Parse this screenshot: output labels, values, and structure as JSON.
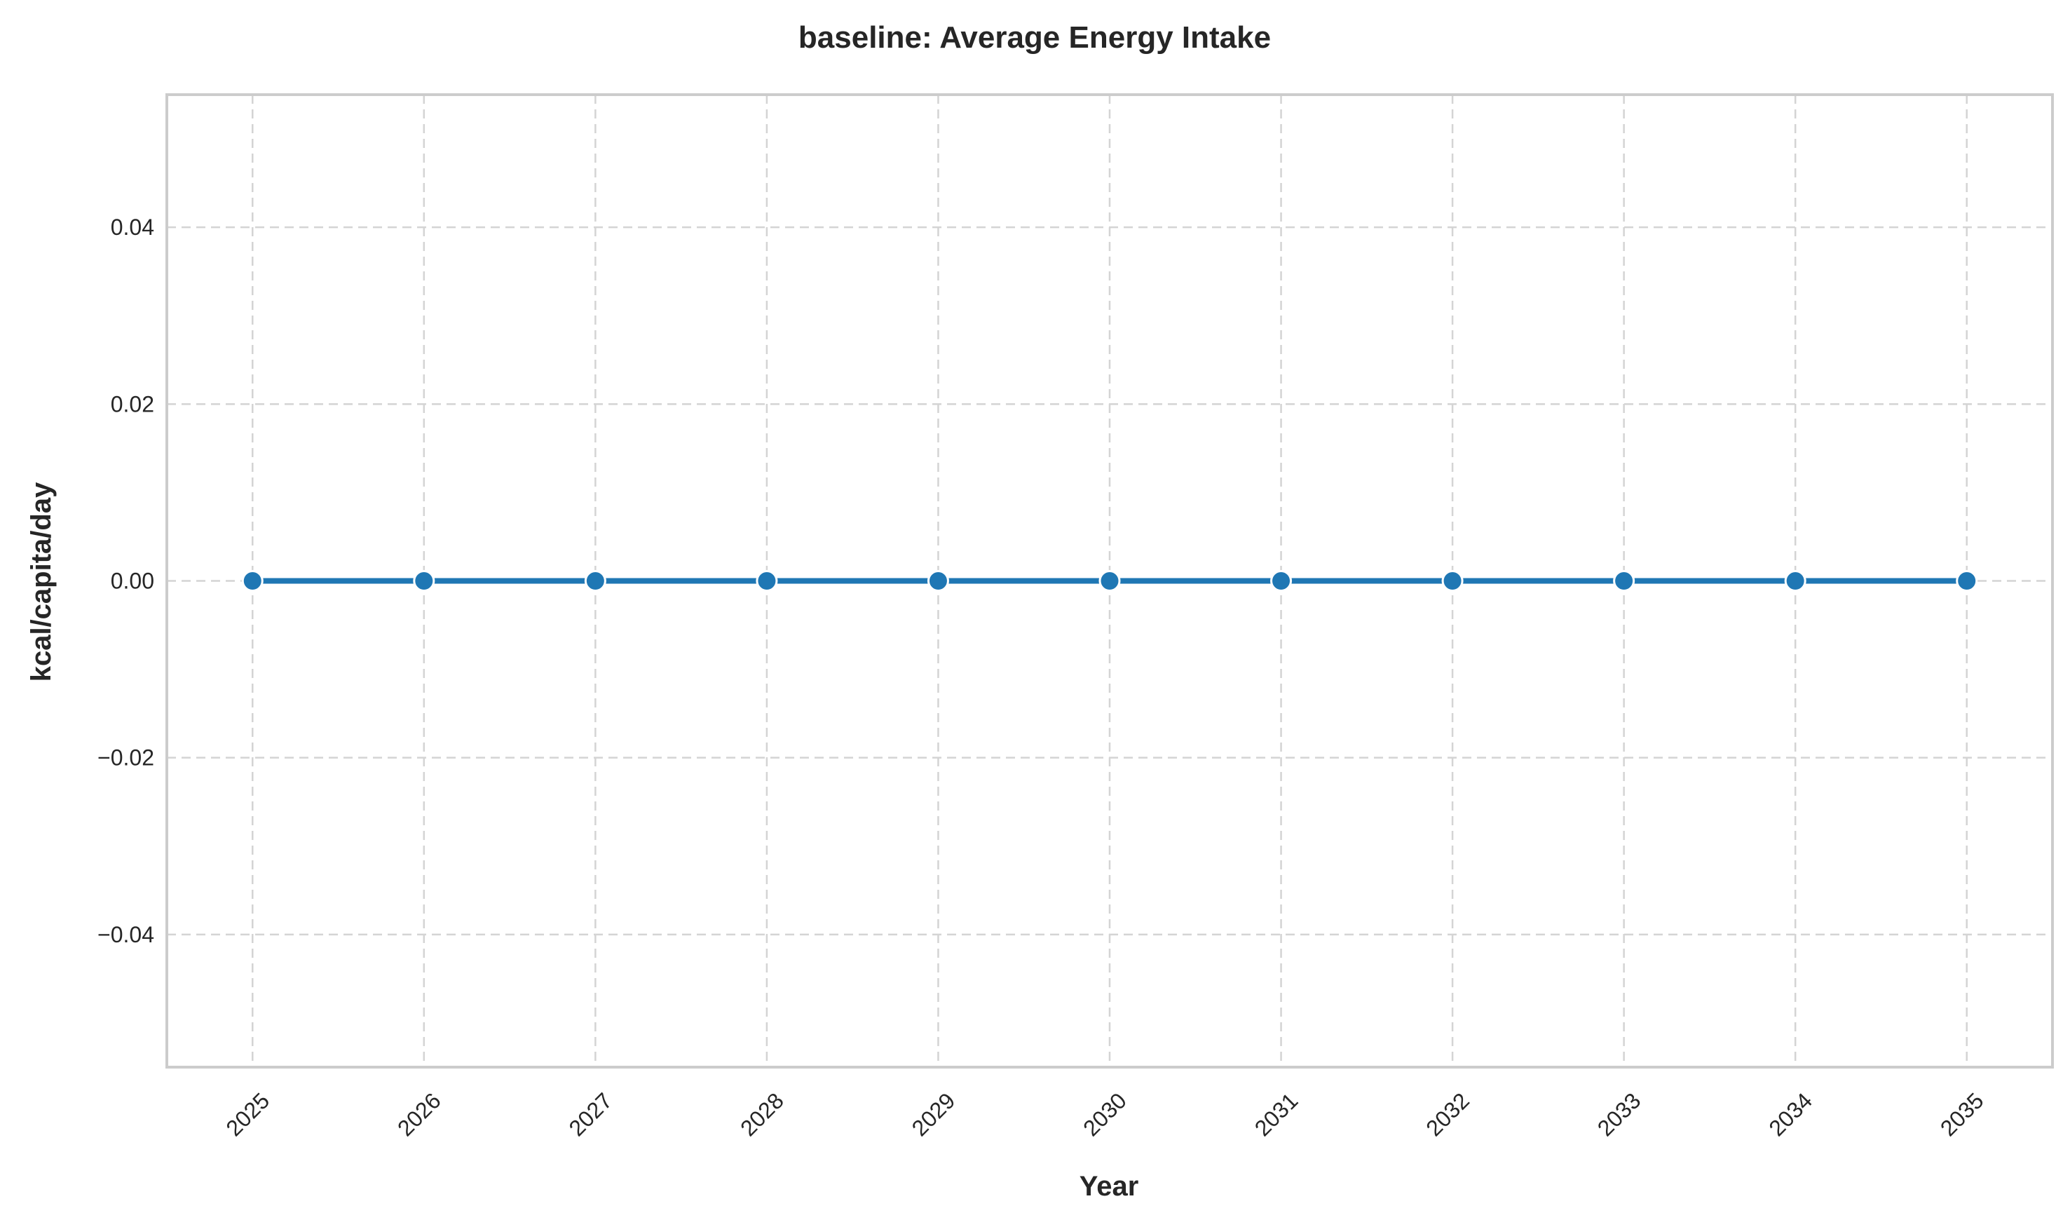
{
  "chart_data": {
    "type": "line",
    "title": "baseline: Average Energy Intake",
    "xlabel": "Year",
    "ylabel": "kcal/capita/day",
    "x": [
      2025,
      2026,
      2027,
      2028,
      2029,
      2030,
      2031,
      2032,
      2033,
      2034,
      2035
    ],
    "x_tick_labels": [
      "2025",
      "2026",
      "2027",
      "2028",
      "2029",
      "2030",
      "2031",
      "2032",
      "2033",
      "2034",
      "2035"
    ],
    "series": [
      {
        "values": [
          0,
          0,
          0,
          0,
          0,
          0,
          0,
          0,
          0,
          0,
          0
        ],
        "color": "#1f77b4",
        "marker": "circle"
      }
    ],
    "xlim": [
      2024.5,
      2035.5
    ],
    "ylim": [
      -0.055,
      0.055
    ],
    "y_ticks": [
      -0.04,
      -0.02,
      0.0,
      0.02,
      0.04
    ],
    "y_tick_labels": [
      "−0.04",
      "−0.02",
      "0.00",
      "0.02",
      "0.04"
    ],
    "x_tick_rotation": 45,
    "grid": true,
    "grid_style": "dashed",
    "legend": false
  }
}
